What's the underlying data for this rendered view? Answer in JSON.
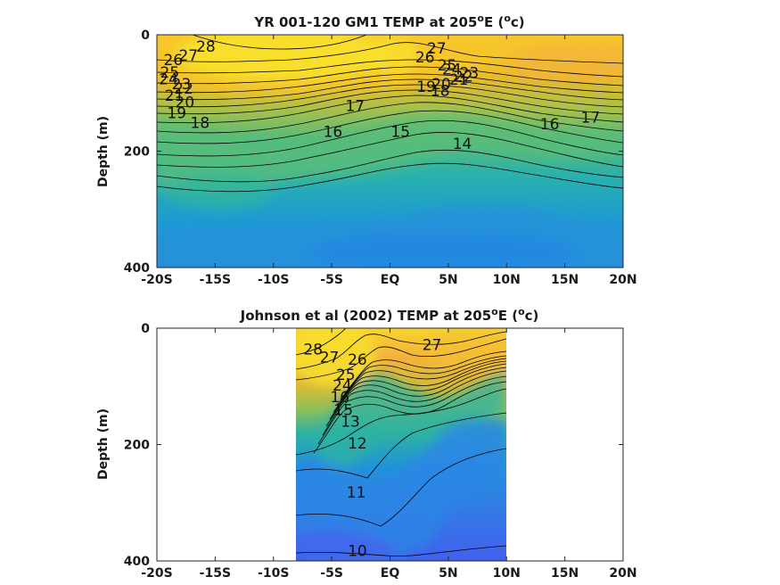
{
  "chart_data": [
    {
      "type": "contour",
      "title": "YR 001-120 GM1 TEMP at 205",
      "title_sup": "o",
      "title_tail": "E (",
      "title_unit_sup": "o",
      "title_end": "c)",
      "ylabel": "Depth (m)",
      "xlim": [
        -20,
        20
      ],
      "ylim": [
        0,
        400
      ],
      "y_reversed": true,
      "data_x_range": [
        -20,
        20
      ],
      "data_y_range": [
        0,
        390
      ],
      "x_ticks": [
        -20,
        -15,
        -10,
        -5,
        0,
        5,
        10,
        15,
        20
      ],
      "x_tick_labels": [
        "-20S",
        "-15S",
        "-10S",
        "-5S",
        "EQ",
        "5N",
        "10N",
        "15N",
        "20N"
      ],
      "y_ticks": [
        0,
        200,
        400
      ],
      "y_tick_labels": [
        "0",
        "200",
        "400"
      ],
      "colormap": "parula",
      "color_range": [
        10,
        29
      ],
      "contour_levels": [
        14,
        15,
        16,
        17,
        18,
        19,
        20,
        21,
        22,
        23,
        24,
        25,
        26,
        27,
        28
      ],
      "contour_labels": [
        {
          "text": "28",
          "x": -15.8,
          "y": 20
        },
        {
          "text": "27",
          "x": -17.3,
          "y": 35
        },
        {
          "text": "26",
          "x": -18.6,
          "y": 43
        },
        {
          "text": "25",
          "x": -18.9,
          "y": 64
        },
        {
          "text": "24",
          "x": -19.0,
          "y": 76
        },
        {
          "text": "23",
          "x": -17.9,
          "y": 84
        },
        {
          "text": "22",
          "x": -17.7,
          "y": 92
        },
        {
          "text": "21",
          "x": -18.5,
          "y": 104
        },
        {
          "text": "20",
          "x": -17.6,
          "y": 116
        },
        {
          "text": "19",
          "x": -18.3,
          "y": 134
        },
        {
          "text": "18",
          "x": -16.3,
          "y": 151
        },
        {
          "text": "17",
          "x": -3.0,
          "y": 122
        },
        {
          "text": "16",
          "x": -4.9,
          "y": 166
        },
        {
          "text": "15",
          "x": 0.9,
          "y": 166
        },
        {
          "text": "14",
          "x": 6.2,
          "y": 187
        },
        {
          "text": "16",
          "x": 13.7,
          "y": 153
        },
        {
          "text": "17",
          "x": 17.2,
          "y": 142
        },
        {
          "text": "27",
          "x": 4.0,
          "y": 23
        },
        {
          "text": "26",
          "x": 3.0,
          "y": 38
        },
        {
          "text": "25",
          "x": 4.9,
          "y": 52
        },
        {
          "text": "24",
          "x": 5.3,
          "y": 59
        },
        {
          "text": "23",
          "x": 6.8,
          "y": 65
        },
        {
          "text": "22",
          "x": 6.3,
          "y": 71
        },
        {
          "text": "21",
          "x": 5.9,
          "y": 77
        },
        {
          "text": "20",
          "x": 4.4,
          "y": 84
        },
        {
          "text": "19",
          "x": 3.1,
          "y": 89
        },
        {
          "text": "18",
          "x": 4.3,
          "y": 96
        }
      ]
    },
    {
      "type": "contour",
      "title": "Johnson et al (2002) TEMP at 205",
      "title_sup": "o",
      "title_tail": "E (",
      "title_unit_sup": "o",
      "title_end": "c)",
      "ylabel": "Depth (m)",
      "xlim": [
        -20,
        20
      ],
      "ylim": [
        0,
        400
      ],
      "y_reversed": true,
      "data_x_range": [
        -8,
        10
      ],
      "data_y_range": [
        0,
        400
      ],
      "x_ticks": [
        -20,
        -15,
        -10,
        -5,
        0,
        5,
        10,
        15,
        20
      ],
      "x_tick_labels": [
        "-20S",
        "-15S",
        "-10S",
        "-5S",
        "EQ",
        "5N",
        "10N",
        "15N",
        "20N"
      ],
      "y_ticks": [
        0,
        200,
        400
      ],
      "y_tick_labels": [
        "0",
        "200",
        "400"
      ],
      "colormap": "parula",
      "color_range": [
        10,
        29
      ],
      "contour_levels": [
        10,
        11,
        12,
        13,
        14,
        15,
        16,
        17,
        18,
        19,
        20,
        21,
        22,
        23,
        24,
        25,
        26,
        27,
        28
      ],
      "contour_labels": [
        {
          "text": "28",
          "x": -6.6,
          "y": 36
        },
        {
          "text": "27",
          "x": -5.2,
          "y": 50
        },
        {
          "text": "27",
          "x": 3.6,
          "y": 28
        },
        {
          "text": "26",
          "x": -2.8,
          "y": 54
        },
        {
          "text": "25",
          "x": -3.8,
          "y": 80
        },
        {
          "text": "24",
          "x": -4.1,
          "y": 98
        },
        {
          "text": "16",
          "x": -4.3,
          "y": 118
        },
        {
          "text": "15",
          "x": -4.0,
          "y": 140
        },
        {
          "text": "13",
          "x": -3.4,
          "y": 160
        },
        {
          "text": "12",
          "x": -2.8,
          "y": 198
        },
        {
          "text": "11",
          "x": -2.9,
          "y": 282
        },
        {
          "text": "10",
          "x": -2.8,
          "y": 382
        }
      ]
    }
  ]
}
